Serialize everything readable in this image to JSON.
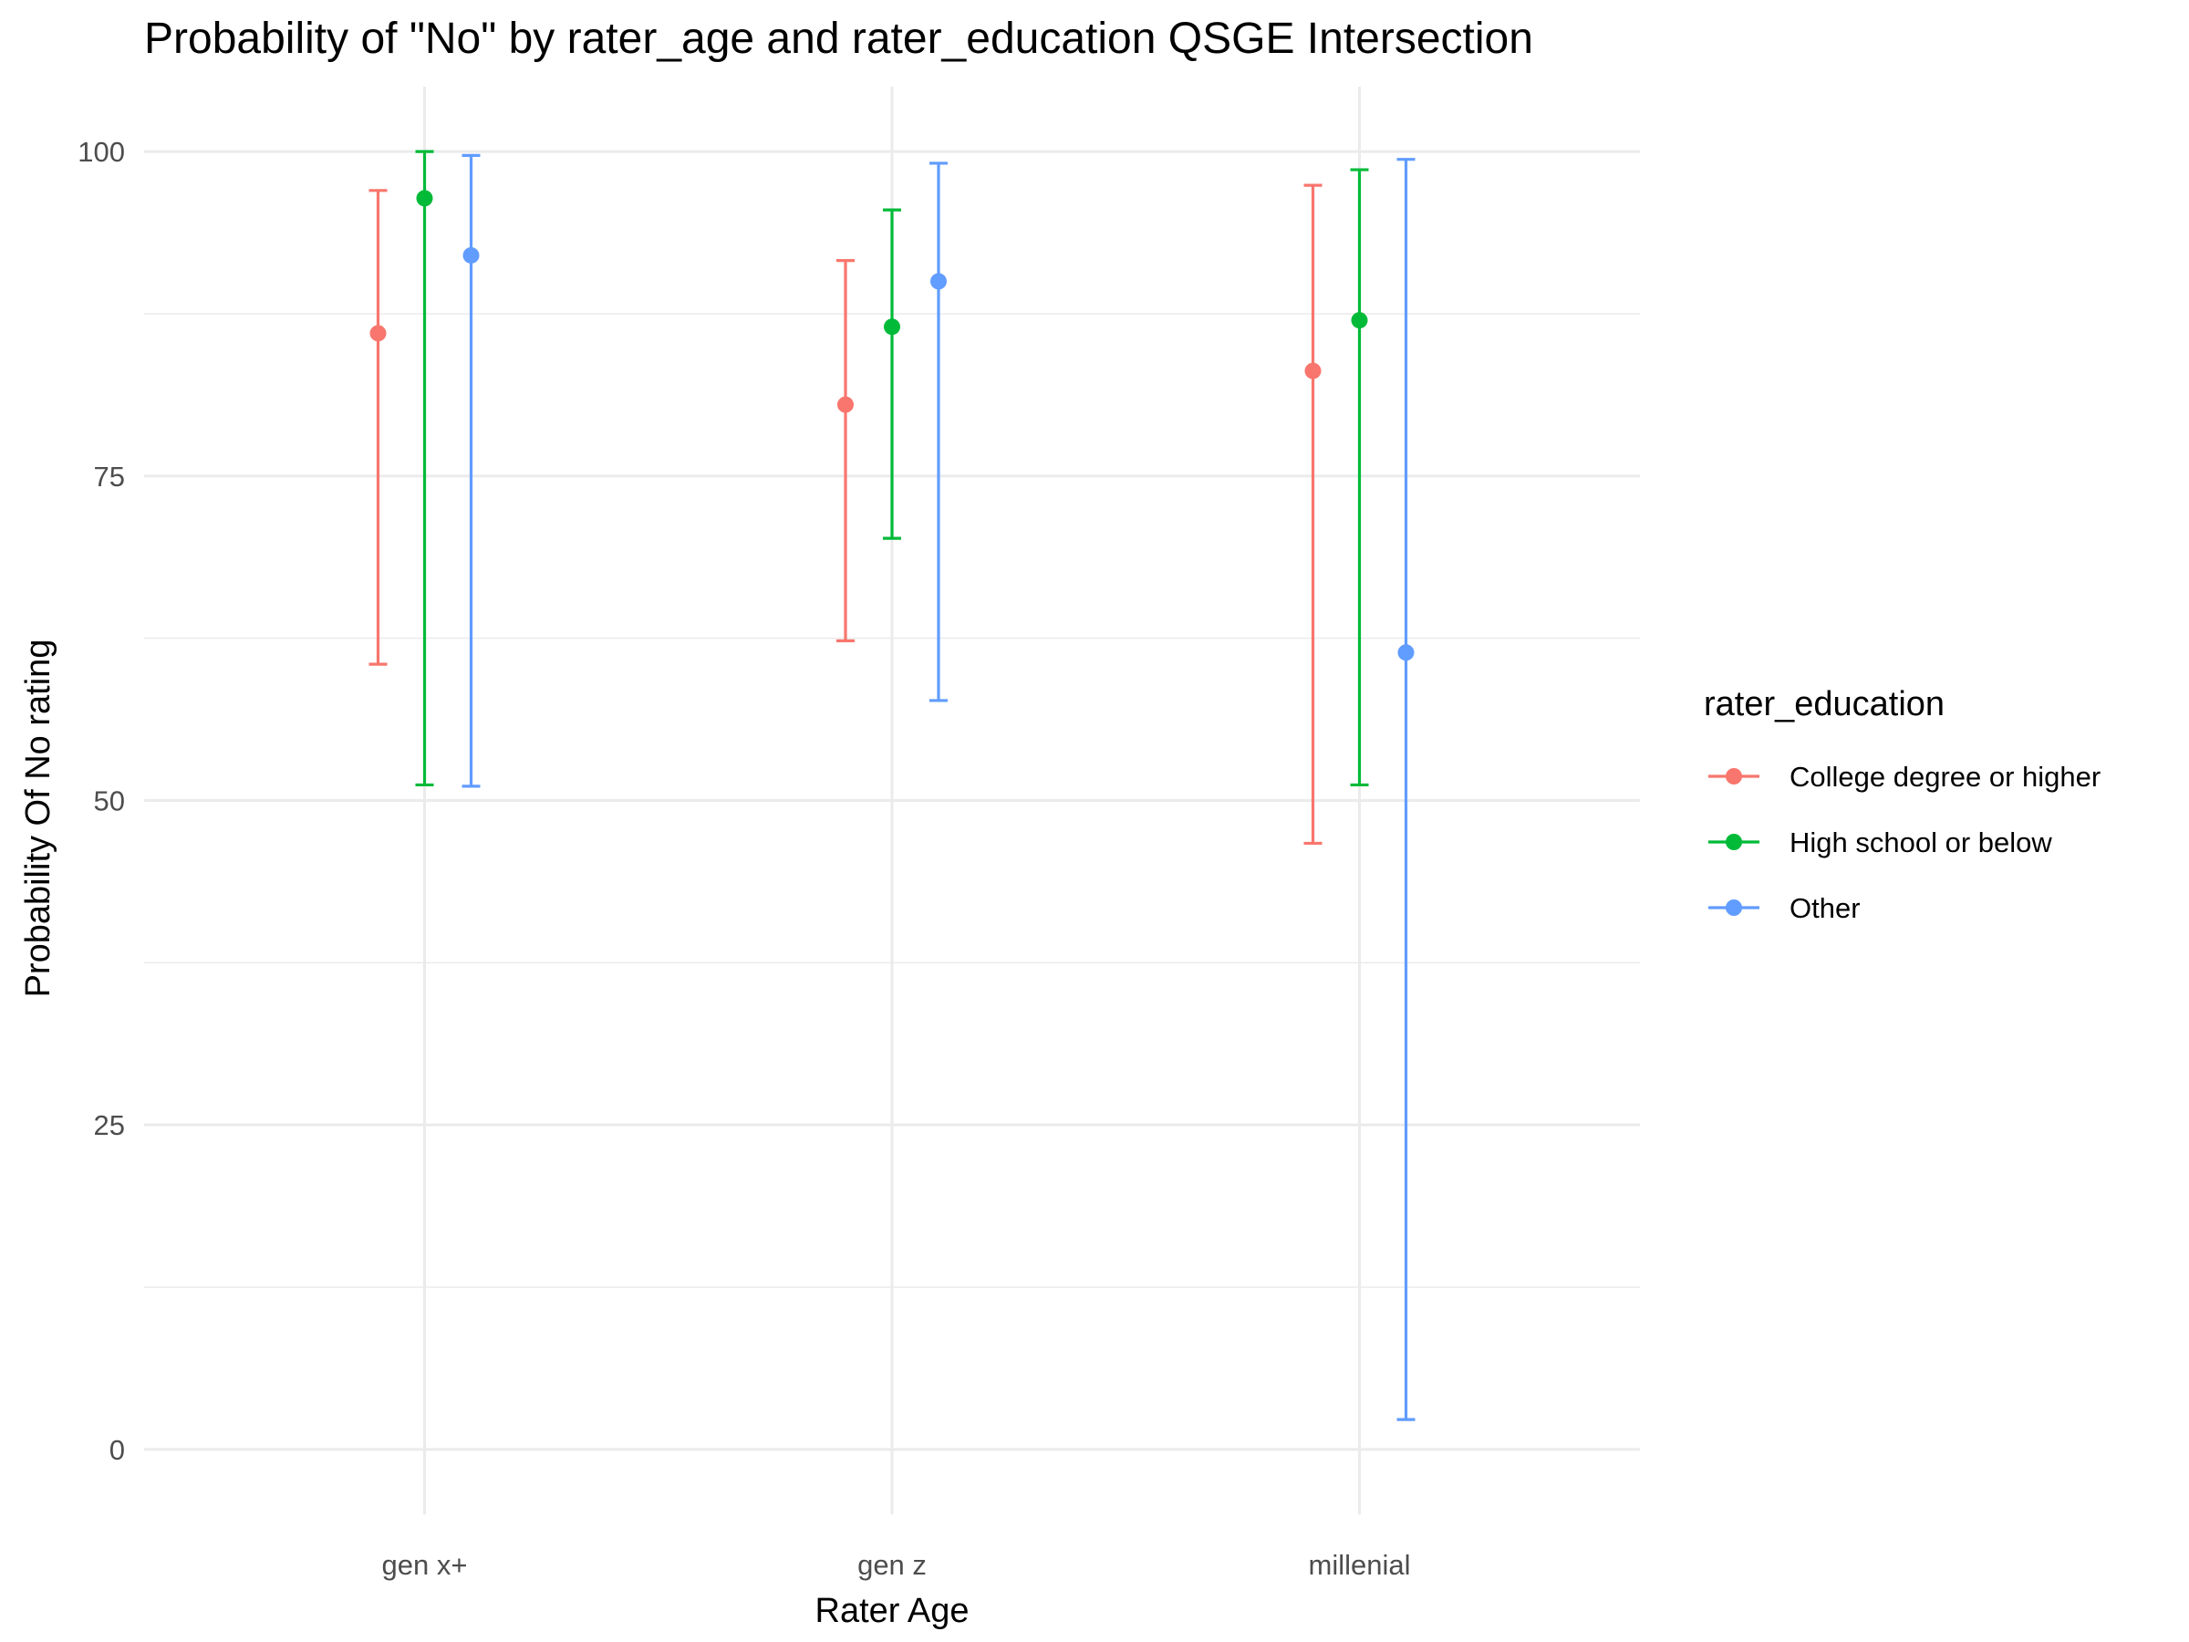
{
  "chart_data": {
    "type": "errorbar",
    "title": "Probability of \"No\" by rater_age and  rater_education  QSGE Intersection",
    "xlabel": "Rater Age",
    "ylabel": "Probability Of No rating",
    "categories": [
      "gen x+",
      "gen z",
      "millenial"
    ],
    "ylim": [
      -5,
      105
    ],
    "yticks": [
      0,
      25,
      50,
      75,
      100
    ],
    "grid": true,
    "legend": {
      "title": "rater_education",
      "position": "right"
    },
    "series": [
      {
        "name": "College degree or higher",
        "color": "#F8766D",
        "points": [
          {
            "category": "gen x+",
            "value": 86.0,
            "lower": 60.5,
            "upper": 97.0
          },
          {
            "category": "gen z",
            "value": 80.5,
            "lower": 62.3,
            "upper": 91.6
          },
          {
            "category": "millenial",
            "value": 83.1,
            "lower": 46.7,
            "upper": 97.4
          }
        ]
      },
      {
        "name": "High school or below",
        "color": "#00BA38",
        "points": [
          {
            "category": "gen x+",
            "value": 96.4,
            "lower": 51.2,
            "upper": 100.0
          },
          {
            "category": "gen z",
            "value": 86.5,
            "lower": 70.2,
            "upper": 95.5
          },
          {
            "category": "millenial",
            "value": 87.0,
            "lower": 51.2,
            "upper": 98.6
          }
        ]
      },
      {
        "name": "Other",
        "color": "#619CFF",
        "points": [
          {
            "category": "gen x+",
            "value": 92.0,
            "lower": 51.1,
            "upper": 99.7
          },
          {
            "category": "gen z",
            "value": 90.0,
            "lower": 57.7,
            "upper": 99.1
          },
          {
            "category": "millenial",
            "value": 61.4,
            "lower": 2.3,
            "upper": 99.4
          }
        ]
      }
    ]
  }
}
